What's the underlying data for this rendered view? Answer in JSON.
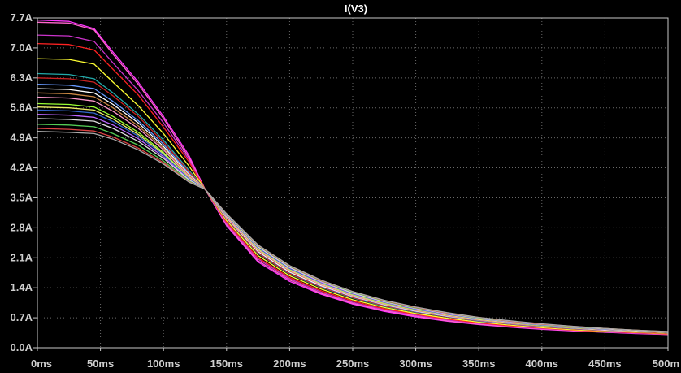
{
  "chart_data": {
    "type": "line",
    "title": "I(V3)",
    "xlabel": "",
    "ylabel": "",
    "x_unit": "ms",
    "y_unit": "A",
    "xlim": [
      0,
      500
    ],
    "ylim": [
      0,
      7.7
    ],
    "grid": true,
    "x_ticks": [
      "0ms",
      "50ms",
      "100ms",
      "150ms",
      "200ms",
      "250ms",
      "300ms",
      "350ms",
      "400ms",
      "450ms",
      "500m"
    ],
    "y_ticks": [
      "0.0A",
      "0.7A",
      "1.4A",
      "2.1A",
      "2.8A",
      "3.5A",
      "4.2A",
      "4.9A",
      "5.6A",
      "6.3A",
      "7.0A",
      "7.7A"
    ],
    "x": [
      0,
      25,
      45,
      60,
      80,
      100,
      120,
      133,
      150,
      175,
      200,
      225,
      250,
      275,
      300,
      325,
      350,
      375,
      400,
      425,
      450,
      475,
      500
    ],
    "series": [
      {
        "color": "#ff33ff",
        "values": [
          7.65,
          7.62,
          7.45,
          6.9,
          6.2,
          5.4,
          4.5,
          3.7,
          2.85,
          2.0,
          1.55,
          1.25,
          1.02,
          0.85,
          0.72,
          0.62,
          0.54,
          0.48,
          0.43,
          0.39,
          0.36,
          0.33,
          0.31
        ]
      },
      {
        "color": "#ff66cc",
        "values": [
          7.6,
          7.58,
          7.42,
          6.85,
          6.15,
          5.35,
          4.45,
          3.7,
          2.87,
          2.03,
          1.58,
          1.27,
          1.04,
          0.87,
          0.74,
          0.63,
          0.55,
          0.49,
          0.44,
          0.4,
          0.36,
          0.34,
          0.31
        ]
      },
      {
        "color": "#cc33cc",
        "values": [
          7.3,
          7.28,
          7.15,
          6.65,
          6.0,
          5.25,
          4.4,
          3.7,
          2.9,
          2.07,
          1.61,
          1.3,
          1.06,
          0.89,
          0.76,
          0.65,
          0.57,
          0.5,
          0.45,
          0.41,
          0.37,
          0.34,
          0.32
        ]
      },
      {
        "color": "#ff2222",
        "values": [
          7.1,
          7.08,
          6.95,
          6.5,
          5.9,
          5.15,
          4.35,
          3.7,
          2.93,
          2.1,
          1.64,
          1.33,
          1.09,
          0.91,
          0.78,
          0.67,
          0.58,
          0.51,
          0.46,
          0.41,
          0.38,
          0.35,
          0.32
        ]
      },
      {
        "color": "#ffff33",
        "values": [
          6.75,
          6.73,
          6.62,
          6.2,
          5.65,
          5.0,
          4.25,
          3.7,
          2.97,
          2.15,
          1.68,
          1.37,
          1.12,
          0.94,
          0.8,
          0.69,
          0.6,
          0.53,
          0.47,
          0.42,
          0.39,
          0.36,
          0.33
        ]
      },
      {
        "color": "#22aaaa",
        "values": [
          6.4,
          6.38,
          6.28,
          5.95,
          5.45,
          4.85,
          4.15,
          3.7,
          3.0,
          2.2,
          1.72,
          1.41,
          1.16,
          0.97,
          0.83,
          0.72,
          0.62,
          0.55,
          0.49,
          0.44,
          0.4,
          0.37,
          0.34
        ]
      },
      {
        "color": "#cc2222",
        "values": [
          6.3,
          6.28,
          6.2,
          5.88,
          5.4,
          4.8,
          4.12,
          3.7,
          3.01,
          2.21,
          1.73,
          1.42,
          1.17,
          0.98,
          0.84,
          0.72,
          0.63,
          0.55,
          0.49,
          0.44,
          0.4,
          0.37,
          0.34
        ]
      },
      {
        "color": "#6699ff",
        "values": [
          6.15,
          6.13,
          6.05,
          5.75,
          5.3,
          4.75,
          4.08,
          3.7,
          3.03,
          2.24,
          1.76,
          1.44,
          1.19,
          1.0,
          0.85,
          0.73,
          0.64,
          0.56,
          0.5,
          0.45,
          0.41,
          0.38,
          0.35
        ]
      },
      {
        "color": "#ffffff",
        "values": [
          6.05,
          6.03,
          5.95,
          5.68,
          5.25,
          4.7,
          4.05,
          3.7,
          3.04,
          2.25,
          1.77,
          1.45,
          1.2,
          1.01,
          0.86,
          0.74,
          0.65,
          0.57,
          0.51,
          0.46,
          0.41,
          0.38,
          0.35
        ]
      },
      {
        "color": "#cc8844",
        "values": [
          5.95,
          5.93,
          5.86,
          5.6,
          5.18,
          4.66,
          4.03,
          3.7,
          3.05,
          2.27,
          1.79,
          1.47,
          1.21,
          1.02,
          0.87,
          0.75,
          0.65,
          0.57,
          0.51,
          0.46,
          0.42,
          0.38,
          0.35
        ]
      },
      {
        "color": "#ff99cc",
        "values": [
          5.85,
          5.83,
          5.76,
          5.52,
          5.12,
          4.62,
          4.0,
          3.7,
          3.06,
          2.29,
          1.81,
          1.48,
          1.22,
          1.03,
          0.88,
          0.76,
          0.66,
          0.58,
          0.52,
          0.47,
          0.42,
          0.39,
          0.36
        ]
      },
      {
        "color": "#99ff33",
        "values": [
          5.7,
          5.68,
          5.62,
          5.4,
          5.03,
          4.56,
          3.97,
          3.7,
          3.08,
          2.31,
          1.83,
          1.5,
          1.24,
          1.04,
          0.89,
          0.77,
          0.67,
          0.59,
          0.52,
          0.47,
          0.43,
          0.39,
          0.36
        ]
      },
      {
        "color": "#eeee66",
        "values": [
          5.62,
          5.6,
          5.55,
          5.34,
          4.98,
          4.53,
          3.96,
          3.7,
          3.08,
          2.32,
          1.84,
          1.51,
          1.25,
          1.05,
          0.9,
          0.77,
          0.67,
          0.59,
          0.53,
          0.48,
          0.43,
          0.39,
          0.36
        ]
      },
      {
        "color": "#3366cc",
        "values": [
          5.55,
          5.53,
          5.48,
          5.28,
          4.94,
          4.5,
          3.95,
          3.7,
          3.09,
          2.33,
          1.85,
          1.52,
          1.26,
          1.06,
          0.9,
          0.78,
          0.68,
          0.6,
          0.53,
          0.48,
          0.43,
          0.4,
          0.36
        ]
      },
      {
        "color": "#bb66ff",
        "values": [
          5.45,
          5.43,
          5.38,
          5.2,
          4.88,
          4.46,
          3.93,
          3.7,
          3.1,
          2.35,
          1.87,
          1.53,
          1.27,
          1.07,
          0.91,
          0.79,
          0.69,
          0.6,
          0.54,
          0.48,
          0.44,
          0.4,
          0.37
        ]
      },
      {
        "color": "#dddddd",
        "values": [
          5.35,
          5.33,
          5.29,
          5.12,
          4.82,
          4.42,
          3.92,
          3.7,
          3.11,
          2.36,
          1.88,
          1.55,
          1.28,
          1.08,
          0.92,
          0.8,
          0.69,
          0.61,
          0.54,
          0.49,
          0.44,
          0.4,
          0.37
        ]
      },
      {
        "color": "#55cc55",
        "values": [
          5.22,
          5.2,
          5.16,
          5.0,
          4.73,
          4.36,
          3.9,
          3.7,
          3.12,
          2.38,
          1.9,
          1.56,
          1.3,
          1.09,
          0.93,
          0.81,
          0.7,
          0.62,
          0.55,
          0.49,
          0.45,
          0.41,
          0.37
        ]
      },
      {
        "color": "#dd4444",
        "values": [
          5.12,
          5.1,
          5.06,
          4.92,
          4.66,
          4.32,
          3.88,
          3.7,
          3.13,
          2.39,
          1.91,
          1.57,
          1.31,
          1.1,
          0.94,
          0.81,
          0.71,
          0.62,
          0.55,
          0.5,
          0.45,
          0.41,
          0.38
        ]
      },
      {
        "color": "#aaaaaa",
        "values": [
          5.05,
          5.03,
          5.0,
          4.87,
          4.62,
          4.29,
          3.87,
          3.7,
          3.13,
          2.4,
          1.92,
          1.58,
          1.31,
          1.11,
          0.95,
          0.82,
          0.71,
          0.63,
          0.56,
          0.5,
          0.45,
          0.41,
          0.38
        ]
      }
    ]
  }
}
